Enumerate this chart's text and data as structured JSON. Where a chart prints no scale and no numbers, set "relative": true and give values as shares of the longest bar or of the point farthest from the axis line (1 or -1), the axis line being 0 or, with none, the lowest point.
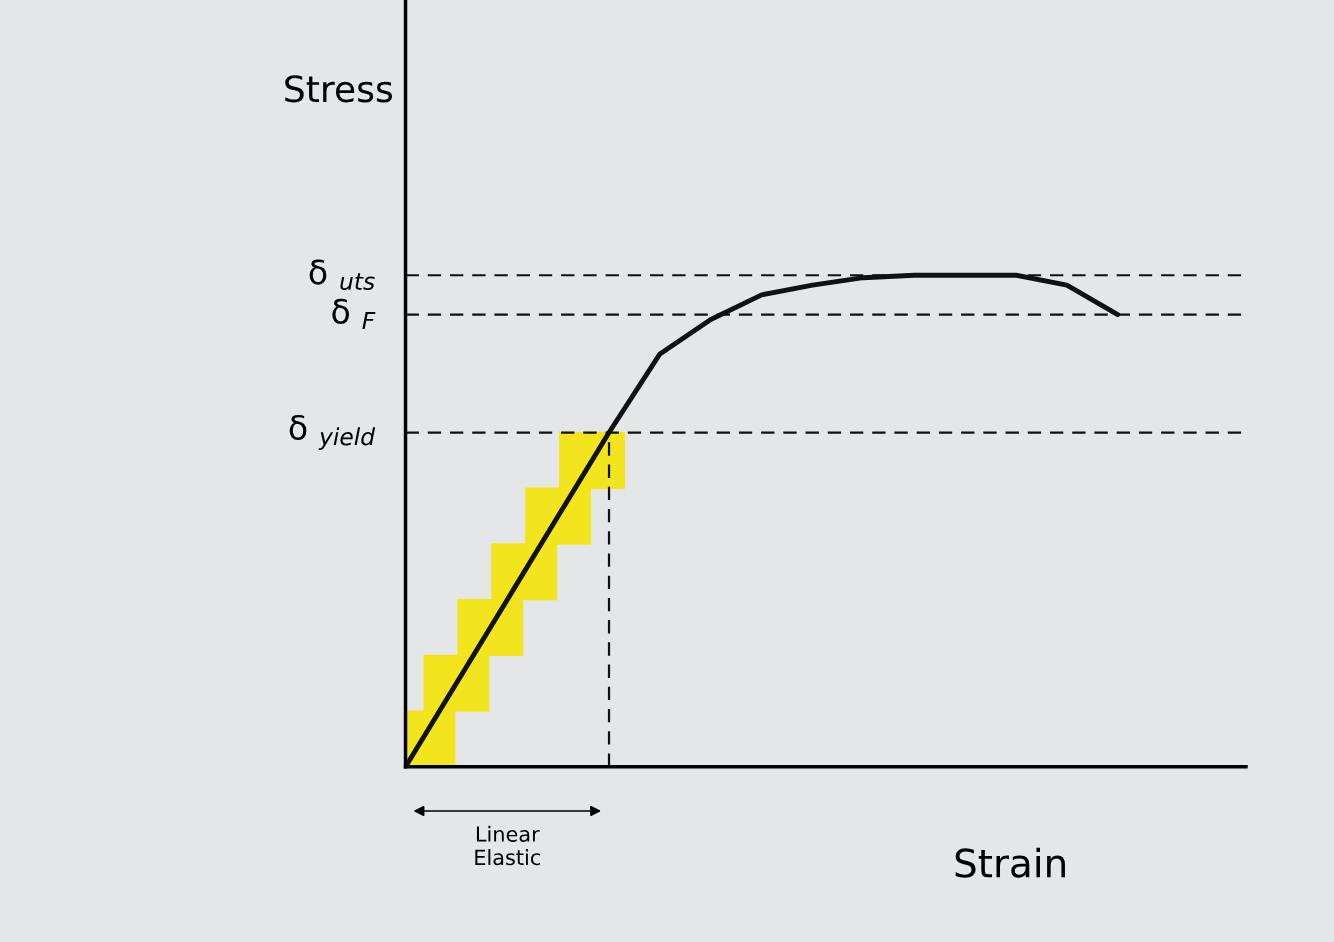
{
  "chart_data": {
    "type": "line",
    "relative": true,
    "xlabel": "Strain",
    "ylabel": "Stress",
    "categories": [
      null,
      null,
      null,
      null,
      null,
      null,
      null,
      null,
      null,
      null,
      null,
      null,
      null,
      null,
      null
    ],
    "series": [
      {
        "color": "#111111",
        "values": [
          0,
          0.17,
          0.34,
          0.51,
          0.68,
          0.84,
          0.91,
          0.96,
          0.98,
          0.995,
          1.0,
          1.0,
          1.0,
          0.98,
          0.92
        ]
      }
    ],
    "ref_lines": [
      {
        "axis": "y",
        "value": 1.0,
        "label": "δ $_{uts}$",
        "line_style": "dashed",
        "color": "#111111"
      },
      {
        "axis": "y",
        "value": 0.92,
        "label": "δ $_{F}$",
        "line_style": "dashed",
        "color": "#111111"
      },
      {
        "axis": "y",
        "value": 0.68,
        "label": "δ $_{yield}$",
        "line_style": "dashed",
        "color": "#111111"
      }
    ],
    "annotations": [
      "Linear\nElastic"
    ],
    "line_style": "solid"
  }
}
